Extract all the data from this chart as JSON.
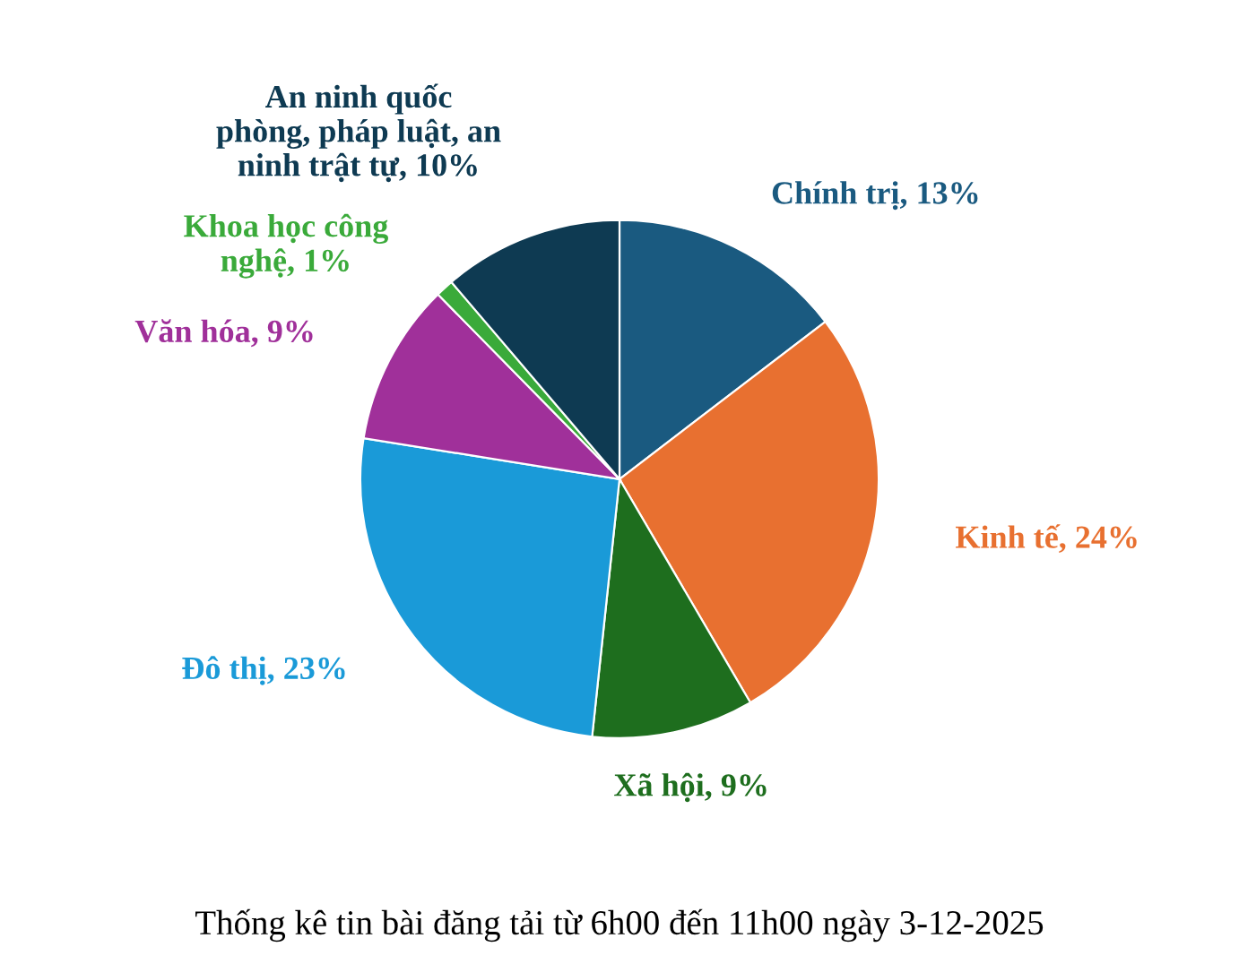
{
  "chart_data": {
    "type": "pie",
    "title": "Thống kê tin bài đăng tải từ 6h00 đến 11h00 ngày 3-12-2025",
    "categories": [
      "Chính trị",
      "Kinh tế",
      "Xã hội",
      "Đô thị",
      "Văn hóa",
      "Khoa học công\nnghệ",
      "An ninh quốc\nphòng, pháp luật, an\nninh trật tự"
    ],
    "values": [
      13,
      24,
      9,
      23,
      9,
      1,
      10
    ],
    "value_labels": [
      "13%",
      "24%",
      "9%",
      "23%",
      "9%",
      "1%",
      "10%"
    ],
    "colors": [
      "#1a5a80",
      "#e87030",
      "#1e6e1e",
      "#1a9ad8",
      "#a0309a",
      "#3aaa3a",
      "#0e3a52"
    ],
    "legend": false
  }
}
